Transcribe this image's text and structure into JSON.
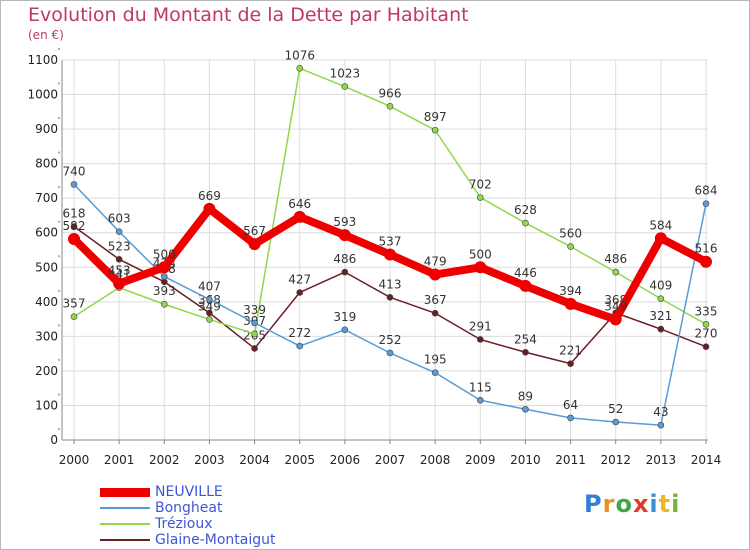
{
  "title": "Evolution du Montant de la Dette par Habitant",
  "unit_label": "(en €)",
  "brand": {
    "text": "Proxiti",
    "letters": [
      "P",
      "r",
      "o",
      "x",
      "i",
      "t",
      "i"
    ],
    "colors": [
      "#2f7fd6",
      "#e39420",
      "#3fa64a",
      "#e23a2a",
      "#3a8fd8",
      "#f0b526",
      "#6fb83a"
    ]
  },
  "chart_data": {
    "type": "line",
    "x": [
      2000,
      2001,
      2002,
      2003,
      2004,
      2005,
      2006,
      2007,
      2008,
      2009,
      2010,
      2011,
      2012,
      2013,
      2014
    ],
    "ylim": [
      0,
      1100
    ],
    "yticks": [
      0,
      100,
      200,
      300,
      400,
      500,
      600,
      700,
      800,
      900,
      1000,
      1100
    ],
    "grid": true,
    "legend_position": "bottom-left",
    "series": [
      {
        "name": "Glaine-Montaigut",
        "color": "#6b1f24",
        "width": 1.5,
        "marker": 3,
        "values": [
          618,
          523,
          458,
          368,
          265,
          427,
          486,
          413,
          367,
          291,
          254,
          221,
          368,
          321,
          270
        ]
      },
      {
        "name": "Trézioux",
        "color": "#8fd84a",
        "width": 1.5,
        "marker": 3,
        "values": [
          357,
          441,
          393,
          349,
          307,
          1076,
          1023,
          966,
          897,
          702,
          628,
          560,
          486,
          409,
          335
        ]
      },
      {
        "name": "Bongheat",
        "color": "#5b9bd5",
        "width": 1.5,
        "marker": 3,
        "values": [
          740,
          603,
          473,
          407,
          339,
          272,
          319,
          252,
          195,
          115,
          89,
          64,
          52,
          43,
          684
        ]
      },
      {
        "name": "NEUVILLE",
        "color": "#ee0000",
        "width": 8,
        "marker": 6,
        "values": [
          582,
          453,
          500,
          669,
          567,
          646,
          593,
          537,
          479,
          500,
          446,
          394,
          349,
          584,
          516
        ]
      }
    ],
    "legend_order": [
      "NEUVILLE",
      "Bongheat",
      "Trézioux",
      "Glaine-Montaigut"
    ]
  }
}
